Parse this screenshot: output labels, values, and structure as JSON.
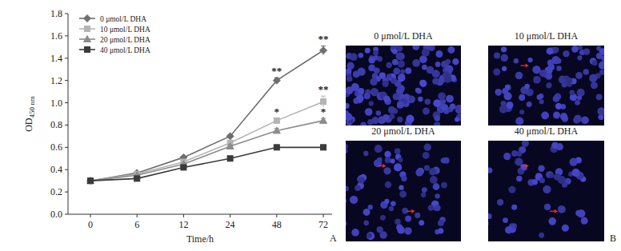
{
  "chart_data": {
    "type": "line",
    "x_label": "Time/h",
    "y_label": "OD450 nm",
    "categories": [
      "0",
      "6",
      "12",
      "24",
      "48",
      "72"
    ],
    "ylim": [
      0,
      1.8
    ],
    "yticks": [
      {
        "value": 0,
        "label": "0.0"
      },
      0.2,
      0.4,
      0.6,
      0.8,
      {
        "value": 1,
        "label": "1.0"
      },
      1.2,
      1.4,
      1.6,
      1.8
    ],
    "grid": false,
    "legend": "upper left",
    "series": [
      {
        "name": "0 μmol/L DHA",
        "color": "#6e6e6e",
        "marker": "diamond",
        "values": [
          0.3,
          0.37,
          0.51,
          0.7,
          1.2,
          1.47
        ],
        "errors": [
          0.005,
          0.01,
          0.01,
          0.01,
          0.025,
          0.04
        ],
        "significance": [
          null,
          null,
          null,
          null,
          "**",
          "**"
        ]
      },
      {
        "name": "10 μmol/L DHA",
        "color": "#b4b4b4",
        "marker": "square",
        "values": [
          0.3,
          0.36,
          0.47,
          0.64,
          0.84,
          1.01
        ],
        "errors": [
          0.005,
          0.01,
          0.01,
          0.01,
          0.02,
          0.05
        ],
        "significance": [
          null,
          null,
          null,
          null,
          "*",
          "**"
        ]
      },
      {
        "name": "20 μmol/L DHA",
        "color": "#8c8c8c",
        "marker": "triangle",
        "values": [
          0.3,
          0.35,
          0.45,
          0.61,
          0.75,
          0.84
        ],
        "errors": [
          0.005,
          0.01,
          0.01,
          0.01,
          0.02,
          0.02
        ],
        "significance": [
          null,
          null,
          null,
          null,
          null,
          "*"
        ]
      },
      {
        "name": "40 μmol/L DHA",
        "color": "#3a3a3a",
        "marker": "square",
        "values": [
          0.3,
          0.32,
          0.42,
          0.5,
          0.6,
          0.6
        ],
        "errors": [
          0.005,
          0.01,
          0.01,
          0.01,
          0.01,
          0.01
        ],
        "significance": [
          null,
          null,
          null,
          null,
          null,
          null
        ]
      }
    ]
  },
  "panel_labels": [
    "A",
    "B"
  ],
  "images": [
    "0 μmol/L DHA",
    "10 μmol/L DHA",
    "20 μmol/L DHA",
    "40 μmol/L DHA"
  ]
}
